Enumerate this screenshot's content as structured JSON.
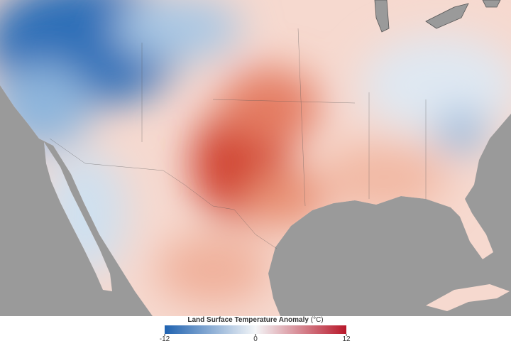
{
  "legend": {
    "title": "Land Surface Temperature Anomaly",
    "unit": "(°C)",
    "range": [
      -12,
      12
    ],
    "ticks": [
      -12,
      0,
      12
    ],
    "colors": [
      "#1f62b0",
      "#f4f6f8",
      "#b8182a"
    ]
  }
}
